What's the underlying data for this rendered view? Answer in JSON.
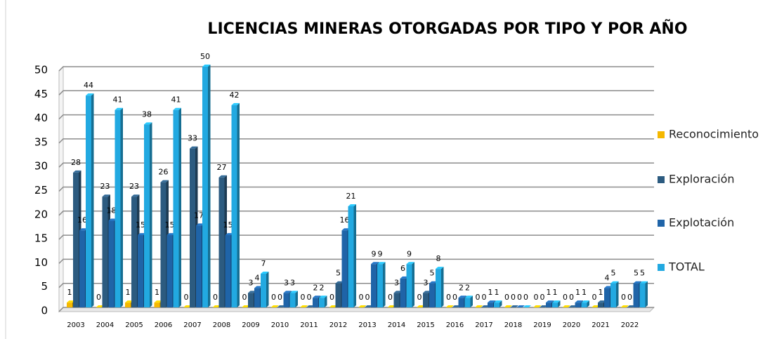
{
  "chart_data": {
    "type": "bar3d",
    "title": "LICENCIAS  MINERAS OTORGADAS POR TIPO Y POR AÑO",
    "categories": [
      "2003",
      "2004",
      "2005",
      "2006",
      "2007",
      "2008",
      "2009",
      "2010",
      "2011",
      "2012",
      "2013",
      "2014",
      "2015",
      "2016",
      "2017",
      "2018",
      "2019",
      "2020",
      "2021",
      "2022"
    ],
    "series": [
      {
        "name": "Reconocimiento",
        "color": "#f5b800",
        "values": [
          1,
          0,
          1,
          1,
          0,
          0,
          0,
          0,
          0,
          0,
          0,
          0,
          0,
          0,
          0,
          0,
          0,
          0,
          0,
          0
        ]
      },
      {
        "name": "Exploración",
        "color": "#2c5b80",
        "values": [
          28,
          23,
          23,
          26,
          33,
          27,
          3,
          0,
          0,
          5,
          0,
          3,
          3,
          0,
          0,
          0,
          0,
          0,
          1,
          0
        ]
      },
      {
        "name": "Explotación",
        "color": "#1f64a8",
        "values": [
          16,
          18,
          15,
          15,
          17,
          15,
          4,
          3,
          2,
          16,
          9,
          6,
          5,
          2,
          1,
          0,
          1,
          1,
          4,
          5
        ]
      },
      {
        "name": "TOTAL",
        "color": "#22a9e1",
        "values": [
          44,
          41,
          38,
          41,
          50,
          42,
          7,
          3,
          2,
          21,
          9,
          9,
          8,
          2,
          1,
          0,
          1,
          1,
          5,
          5
        ]
      }
    ],
    "ylim": [
      0,
      50
    ],
    "yticks": [
      0,
      5,
      10,
      15,
      20,
      25,
      30,
      35,
      40,
      45,
      50
    ],
    "grid": true,
    "legend": "right"
  }
}
